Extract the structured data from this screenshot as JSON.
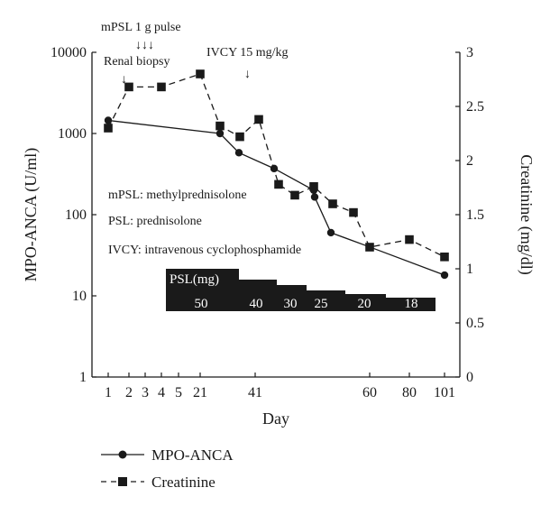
{
  "chart_data": {
    "type": "line",
    "xlabel": "Day",
    "ylabel_left": "MPO-ANCA (U/ml)",
    "ylabel_right": "Creatinine (mg/dl)",
    "x_tick_labels": [
      "1",
      "2",
      "3",
      "4",
      "5",
      "21",
      "41",
      "60",
      "80",
      "101"
    ],
    "y_left_scale": "log",
    "y_left_ticks": [
      "1",
      "10",
      "100",
      "1000",
      "10000"
    ],
    "y_left_range": [
      1,
      10000
    ],
    "y_right_ticks": [
      "0",
      "0.5",
      "1",
      "1.5",
      "2",
      "2.5",
      "3"
    ],
    "y_right_range": [
      0,
      3
    ],
    "series": [
      {
        "name": "MPO-ANCA",
        "axis": "left",
        "marker": "circle",
        "line": "solid",
        "points": [
          {
            "x": "1",
            "y": 1450
          },
          {
            "x": "~30",
            "y": 1000
          },
          {
            "x": "~36",
            "y": 580
          },
          {
            "x": "~46",
            "y": 370
          },
          {
            "x": "~52",
            "y": 200
          },
          {
            "x": "~56",
            "y": 165
          },
          {
            "x": "~58",
            "y": 60
          },
          {
            "x": "60",
            "y": 40
          },
          {
            "x": "101",
            "y": 18
          }
        ]
      },
      {
        "name": "Creatinine",
        "axis": "right",
        "marker": "square",
        "line": "dashed",
        "points": [
          {
            "x": "1",
            "y": 2.3
          },
          {
            "x": "2",
            "y": 2.68
          },
          {
            "x": "4",
            "y": 2.68
          },
          {
            "x": "21",
            "y": 2.8
          },
          {
            "x": "~30",
            "y": 2.32
          },
          {
            "x": "~36",
            "y": 2.22
          },
          {
            "x": "~40",
            "y": 2.38
          },
          {
            "x": "~44",
            "y": 1.78
          },
          {
            "x": "~47",
            "y": 1.68
          },
          {
            "x": "~51",
            "y": 1.76
          },
          {
            "x": "~55",
            "y": 1.6
          },
          {
            "x": "~58",
            "y": 1.52
          },
          {
            "x": "60",
            "y": 1.2
          },
          {
            "x": "80",
            "y": 1.27
          },
          {
            "x": "101",
            "y": 1.11
          }
        ]
      }
    ],
    "annotations": {
      "pulse": "mPSL 1 g pulse",
      "biopsy": "Renal biopsy",
      "ivcy": "IVCY 15 mg/kg",
      "arrow_glyph": "↓",
      "triple_arrow_glyph": "↓↓↓",
      "notes": [
        "mPSL: methylprednisolone",
        "PSL: prednisolone",
        "IVCY: intravenous cyclophosphamide"
      ]
    },
    "psl_block": {
      "title": "PSL(mg)",
      "doses": [
        50,
        40,
        30,
        25,
        20,
        18
      ],
      "dose_labels": [
        "50",
        "40",
        "30",
        "25",
        "20",
        "18"
      ]
    },
    "legend": {
      "placement": "bottom-left",
      "items": [
        {
          "label": "MPO-ANCA",
          "symbol": "—●—"
        },
        {
          "label": "Creatinine",
          "symbol": "–■–"
        }
      ]
    },
    "colors": {
      "ink": "#1a1a1a",
      "psl_fill": "#1a1a1a",
      "background": "#ffffff"
    }
  }
}
